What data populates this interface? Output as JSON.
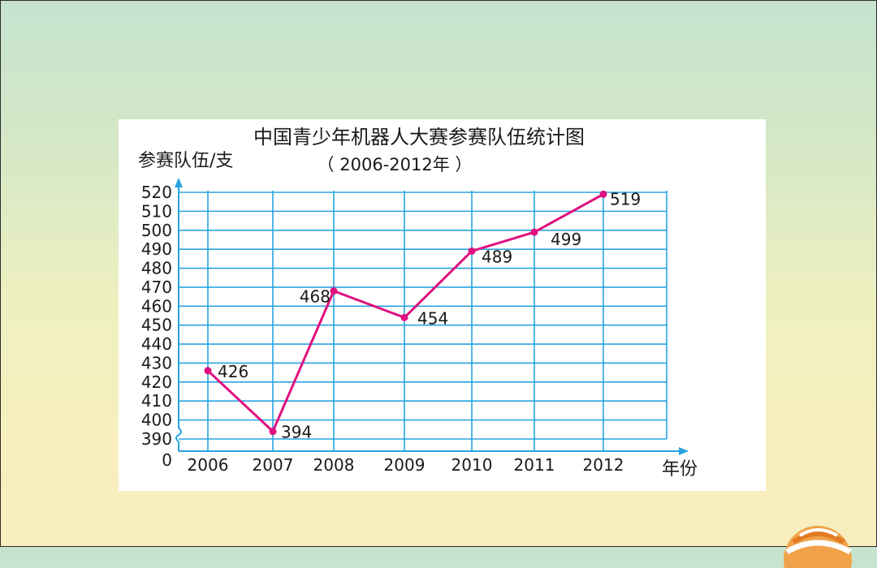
{
  "chart_data": {
    "type": "line",
    "title": "中国青少年机器人大赛参赛队伍统计图",
    "subtitle": "（ 2006-2012年 ）",
    "ylabel": "参赛队伍/支",
    "xlabel": "年份",
    "categories": [
      "2006",
      "2007",
      "2008",
      "2009",
      "2010",
      "2011",
      "2012"
    ],
    "values": [
      426,
      394,
      468,
      454,
      489,
      499,
      519
    ],
    "data_labels": [
      "426",
      "394",
      "468",
      "454",
      "489",
      "499",
      "519"
    ],
    "y_ticks": [
      "520",
      "510",
      "500",
      "490",
      "480",
      "470",
      "460",
      "450",
      "440",
      "430",
      "420",
      "410",
      "400",
      "390"
    ],
    "y_zero_label": "0",
    "ylim": [
      390,
      520
    ],
    "y_axis_break": true,
    "grid": true,
    "colors": {
      "line": "#e0117f",
      "grid": "#28a3e0",
      "text": "#1a1a1a"
    }
  }
}
